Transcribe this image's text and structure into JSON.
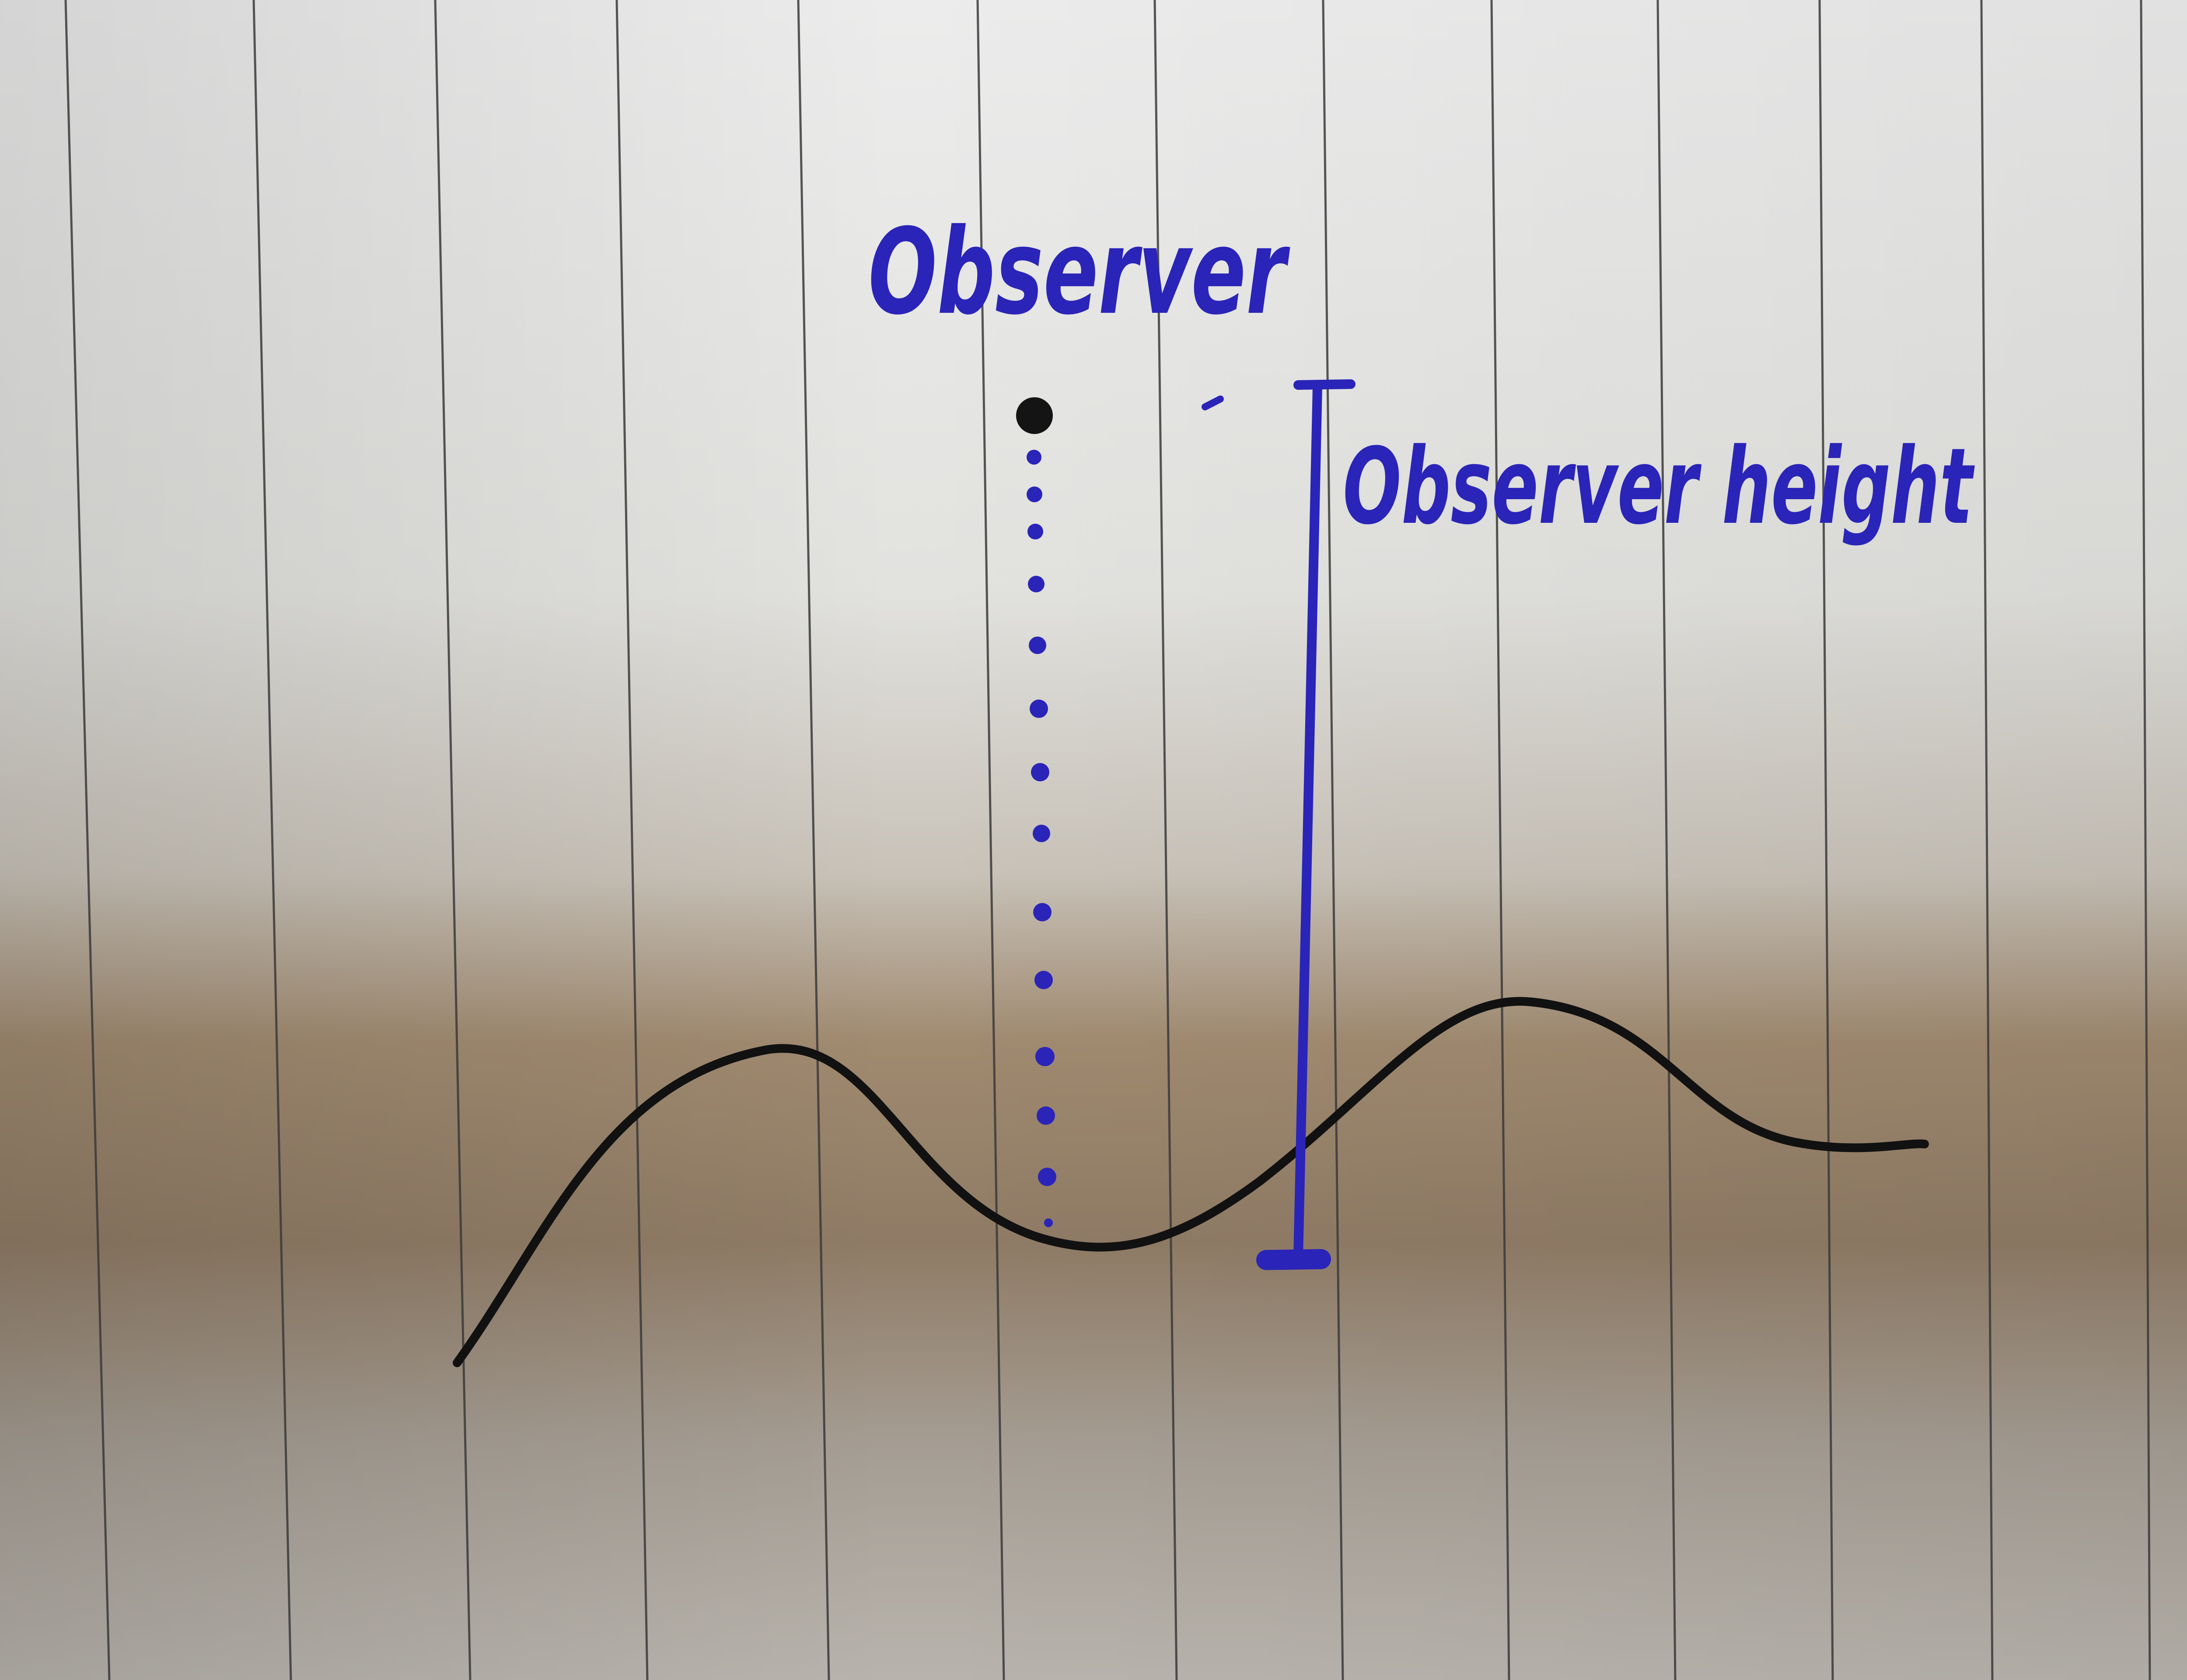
{
  "labels": {
    "observer": "Observer",
    "observer_height": "Observer height"
  },
  "colors": {
    "ink_blue": "#2a24b8",
    "ink_black": "#111111",
    "rule_line": "#3a3a3a"
  }
}
